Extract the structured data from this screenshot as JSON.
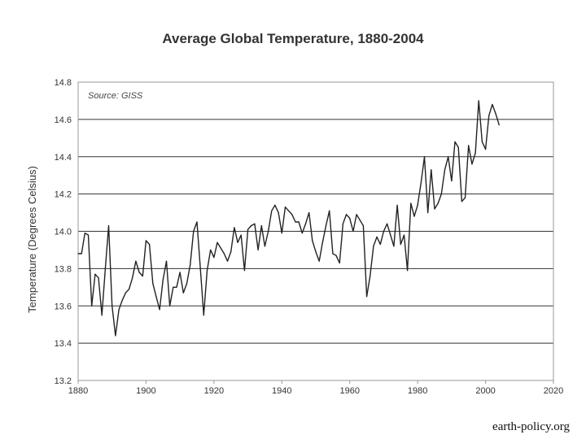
{
  "chart_data": {
    "type": "line",
    "title": "Average Global Temperature, 1880-2004",
    "ylabel": "Temperature (Degrees Celsius)",
    "xlabel": "",
    "annotation": "Source: GISS",
    "xlim": [
      1880,
      2020
    ],
    "ylim": [
      13.2,
      14.8
    ],
    "xticks": [
      "1880",
      "1900",
      "1920",
      "1940",
      "1960",
      "1980",
      "2000",
      "2020"
    ],
    "yticks": [
      "13.2",
      "13.4",
      "13.6",
      "13.8",
      "14.0",
      "14.2",
      "14.4",
      "14.6",
      "14.8"
    ],
    "grid": "horizontal",
    "legend": "none",
    "series": [
      {
        "x": [
          1880,
          1881,
          1882,
          1883,
          1884,
          1885,
          1886,
          1887,
          1888,
          1889,
          1890,
          1891,
          1892,
          1893,
          1894,
          1895,
          1896,
          1897,
          1898,
          1899,
          1900,
          1901,
          1902,
          1903,
          1904,
          1905,
          1906,
          1907,
          1908,
          1909,
          1910,
          1911,
          1912,
          1913,
          1914,
          1915,
          1916,
          1917,
          1918,
          1919,
          1920,
          1921,
          1922,
          1923,
          1924,
          1925,
          1926,
          1927,
          1928,
          1929,
          1930,
          1931,
          1932,
          1933,
          1934,
          1935,
          1936,
          1937,
          1938,
          1939,
          1940,
          1941,
          1942,
          1943,
          1944,
          1945,
          1946,
          1947,
          1948,
          1949,
          1950,
          1951,
          1952,
          1953,
          1954,
          1955,
          1956,
          1957,
          1958,
          1959,
          1960,
          1961,
          1962,
          1963,
          1964,
          1965,
          1966,
          1967,
          1968,
          1969,
          1970,
          1971,
          1972,
          1973,
          1974,
          1975,
          1976,
          1977,
          1978,
          1979,
          1980,
          1981,
          1982,
          1983,
          1984,
          1985,
          1986,
          1987,
          1988,
          1989,
          1990,
          1991,
          1992,
          1993,
          1994,
          1995,
          1996,
          1997,
          1998,
          1999,
          2000,
          2001,
          2002,
          2003,
          2004
        ],
        "values": [
          13.88,
          13.88,
          13.99,
          13.98,
          13.6,
          13.77,
          13.75,
          13.55,
          13.8,
          14.03,
          13.6,
          13.44,
          13.58,
          13.63,
          13.67,
          13.69,
          13.75,
          13.84,
          13.78,
          13.76,
          13.95,
          13.93,
          13.72,
          13.65,
          13.58,
          13.74,
          13.84,
          13.6,
          13.7,
          13.7,
          13.78,
          13.67,
          13.72,
          13.82,
          14.0,
          14.05,
          13.8,
          13.55,
          13.79,
          13.9,
          13.86,
          13.94,
          13.91,
          13.88,
          13.84,
          13.89,
          14.02,
          13.94,
          13.98,
          13.79,
          14.01,
          14.03,
          14.04,
          13.9,
          14.03,
          13.92,
          14.0,
          14.11,
          14.14,
          14.1,
          13.99,
          14.13,
          14.11,
          14.09,
          14.05,
          14.05,
          13.99,
          14.04,
          14.1,
          13.95,
          13.89,
          13.84,
          13.94,
          14.03,
          14.11,
          13.88,
          13.87,
          13.83,
          14.04,
          14.09,
          14.07,
          14.0,
          14.09,
          14.06,
          14.03,
          13.65,
          13.76,
          13.92,
          13.97,
          13.93,
          14.0,
          14.04,
          13.98,
          13.92,
          14.14,
          13.93,
          13.98,
          13.79,
          14.15,
          14.08,
          14.14,
          14.26,
          14.4,
          14.1,
          14.33,
          14.12,
          14.15,
          14.2,
          14.33,
          14.4,
          14.27,
          14.48,
          14.45,
          14.16,
          14.18,
          14.46,
          14.36,
          14.42,
          14.7,
          14.48,
          14.44,
          14.62,
          14.68,
          14.63,
          14.57
        ]
      }
    ]
  },
  "footer": {
    "credit": "earth-policy.org"
  },
  "colors": {
    "line": "#222222",
    "grid": "#333333",
    "plot_border": "#999999",
    "background": "#ffffff"
  }
}
